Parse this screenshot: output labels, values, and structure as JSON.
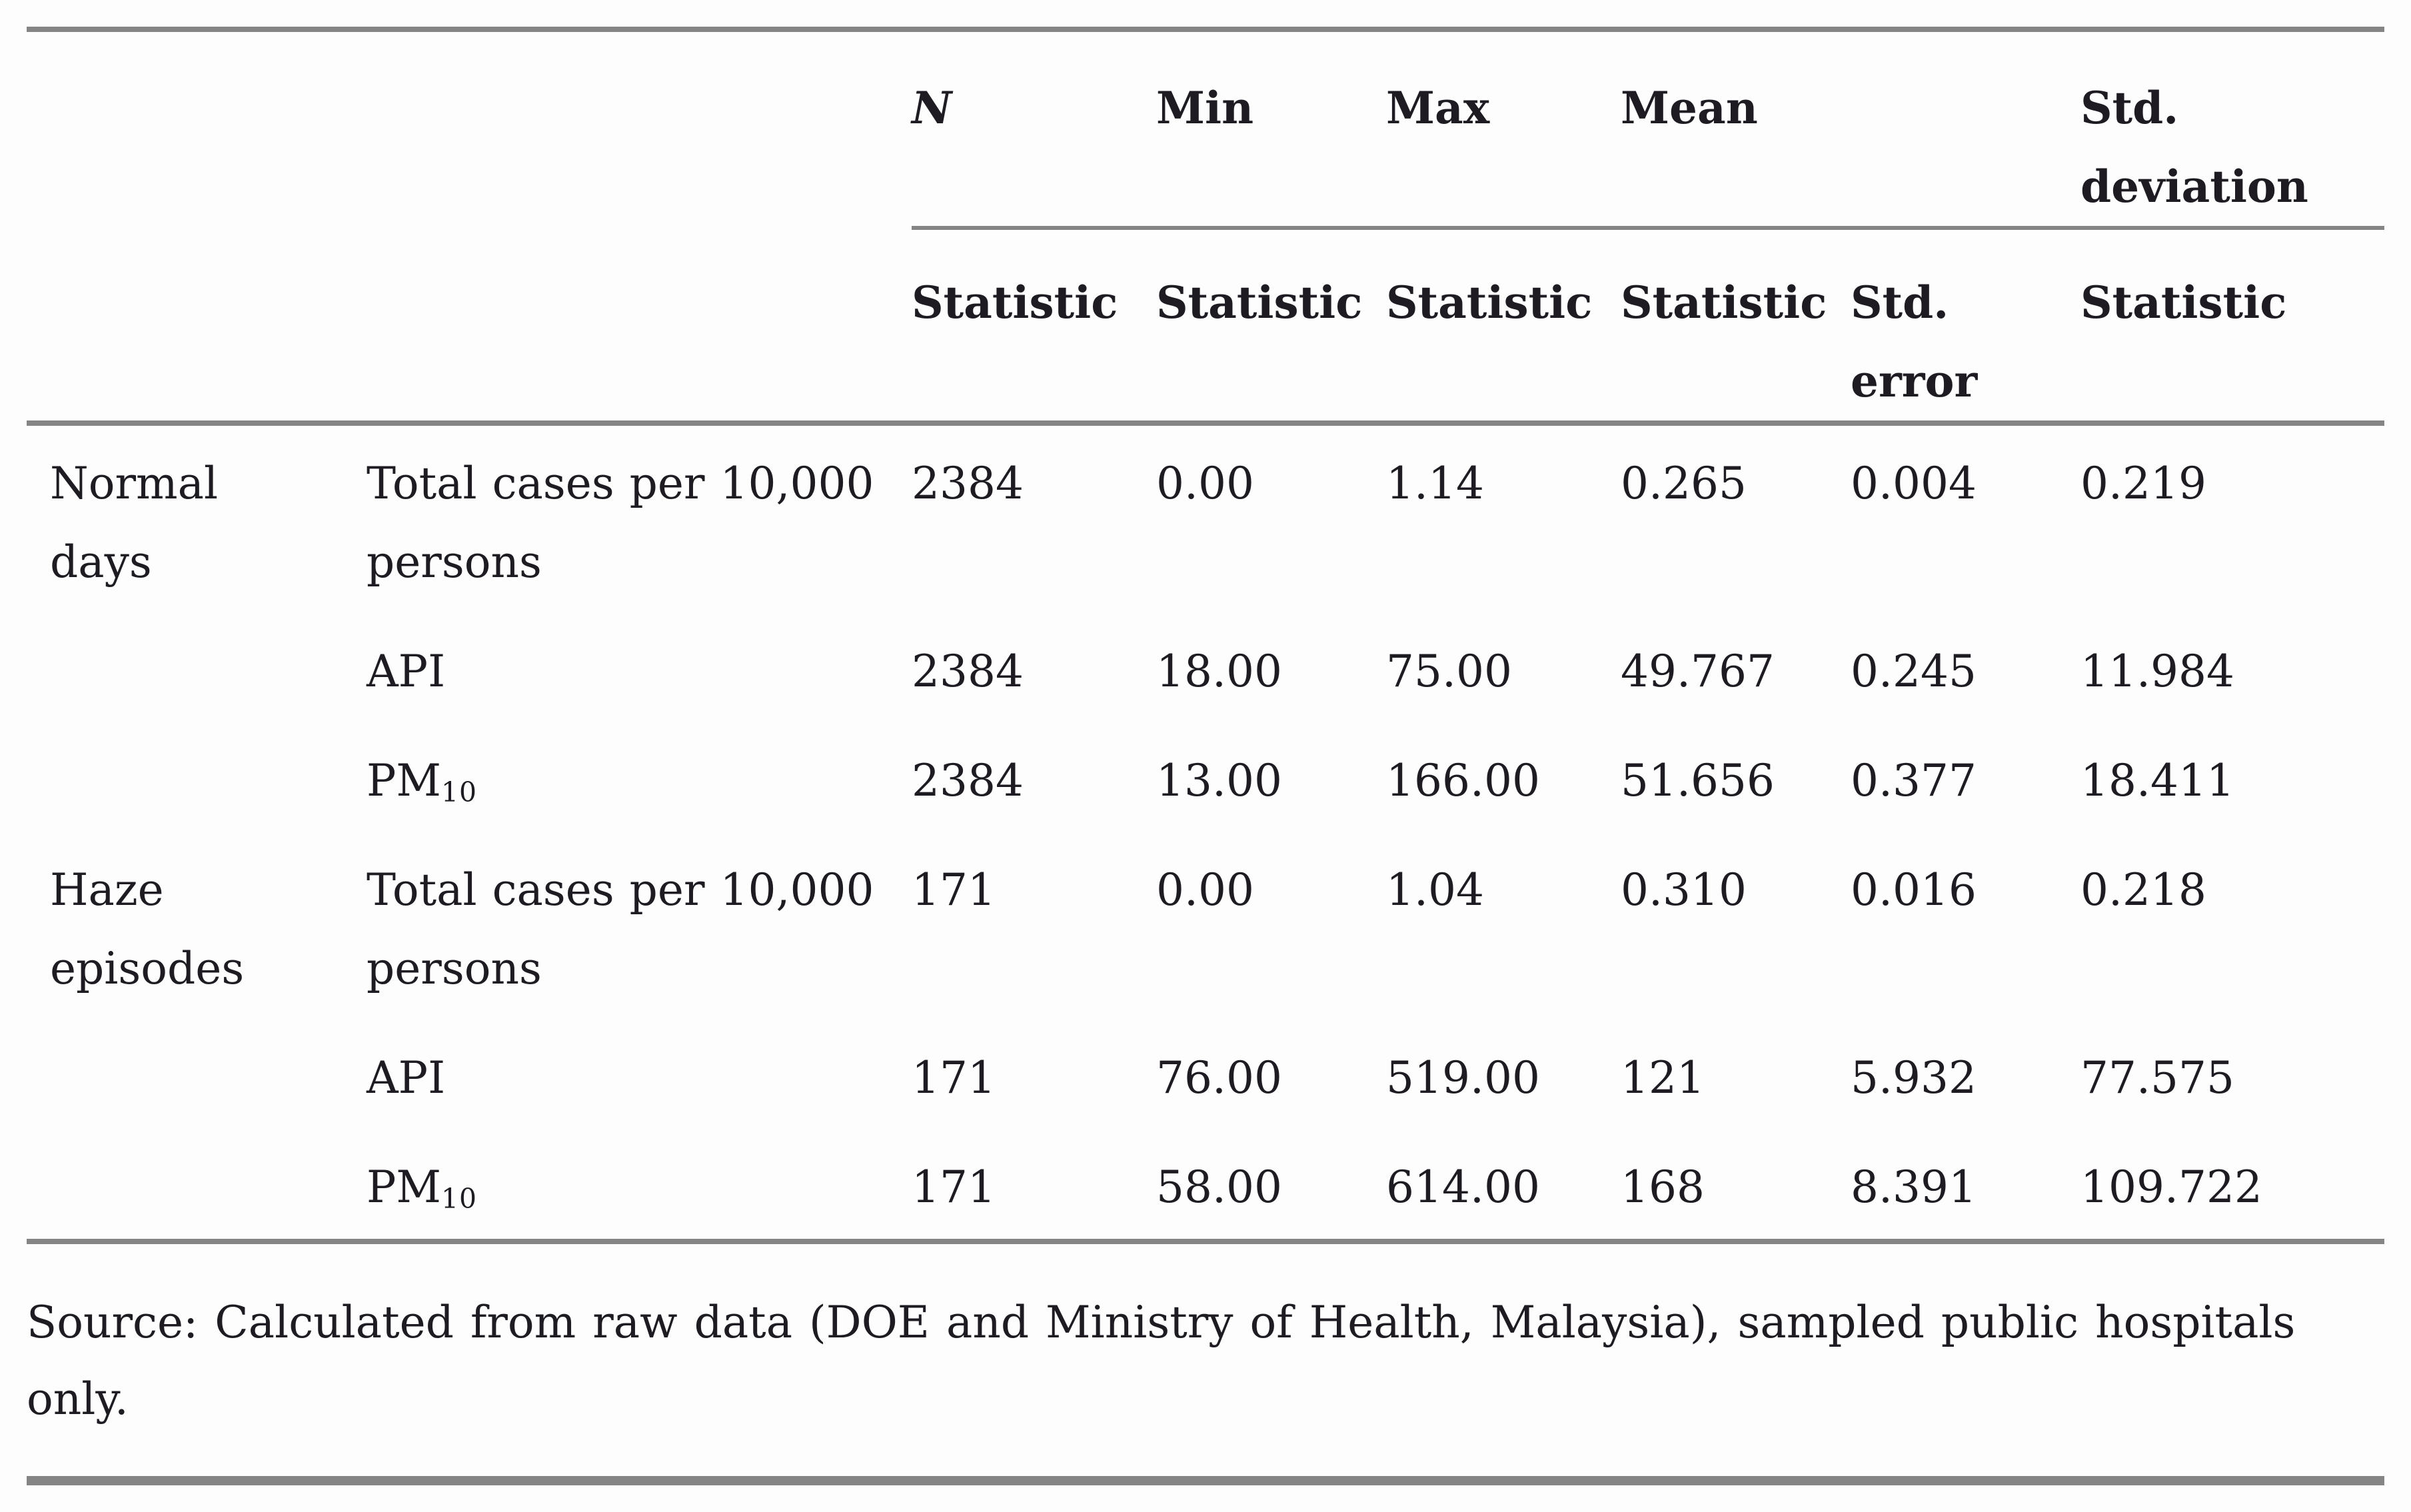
{
  "table": {
    "header_row1": {
      "n": "N",
      "min": "Min",
      "max": "Max",
      "mean": "Mean",
      "std_deviation": "Std. deviation"
    },
    "header_row2": {
      "stat_n": "Statistic",
      "stat_min": "Statistic",
      "stat_max": "Statistic",
      "stat_mean": "Statistic",
      "std_error": "Std. error",
      "stat_sd": "Statistic"
    },
    "rows": [
      {
        "group": "Normal days",
        "variable": "Total cases per 10,000 persons",
        "n": "2384",
        "min": "0.00",
        "max": "1.14",
        "mean": "0.265",
        "std_error": "0.004",
        "std_deviation": "0.219"
      },
      {
        "group": "",
        "variable": "API",
        "n": "2384",
        "min": "18.00",
        "max": "75.00",
        "mean": "49.767",
        "std_error": "0.245",
        "std_deviation": "11.984"
      },
      {
        "group": "",
        "variable": "PM",
        "variable_sub": "10",
        "n": "2384",
        "min": "13.00",
        "max": "166.00",
        "mean": "51.656",
        "std_error": "0.377",
        "std_deviation": "18.411"
      },
      {
        "group": "Haze episodes",
        "variable": "Total cases per 10,000 persons",
        "n": "171",
        "min": "0.00",
        "max": "1.04",
        "mean": "0.310",
        "std_error": "0.016",
        "std_deviation": "0.218"
      },
      {
        "group": "",
        "variable": "API",
        "n": "171",
        "min": "76.00",
        "max": "519.00",
        "mean": "121",
        "std_error": "5.932",
        "std_deviation": "77.575"
      },
      {
        "group": "",
        "variable": "PM",
        "variable_sub": "10",
        "n": "171",
        "min": "58.00",
        "max": "614.00",
        "mean": "168",
        "std_error": "8.391",
        "std_deviation": "109.722"
      }
    ]
  },
  "source_note": {
    "line1": "Source: Calculated from raw data (DOE and Ministry of Health, Malaysia), sampled public hospitals",
    "line2": "only."
  }
}
